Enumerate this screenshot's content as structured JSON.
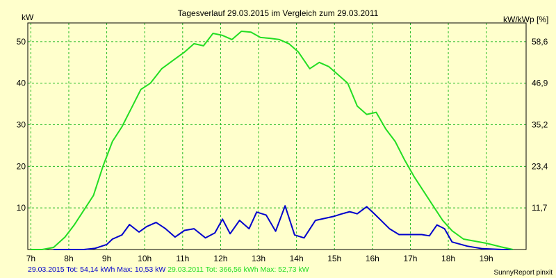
{
  "chart_data": {
    "type": "line",
    "title": "Tagesverlauf 29.03.2015 im Vergleich zum 29.03.2011",
    "ylabel_left": "kW",
    "ylabel_right": "kW/kWp [%]",
    "x_ticks": [
      "7h",
      "8h",
      "9h",
      "10h",
      "11h",
      "12h",
      "13h",
      "14h",
      "15h",
      "16h",
      "17h",
      "18h",
      "19h"
    ],
    "y_left_ticks": [
      10,
      20,
      30,
      40,
      50
    ],
    "y_right_ticks": [
      "11,7",
      "23,4",
      "35,2",
      "46,9",
      "58,6"
    ],
    "xlim": [
      6.92,
      20.05
    ],
    "ylim": [
      0,
      54.5
    ],
    "grid": true,
    "colors": {
      "background": "#ffffcc",
      "grid": "#22bb22",
      "series_2015": "#0000cc",
      "series_2011": "#22dd22"
    },
    "series": [
      {
        "name": "29.03.2015",
        "color": "#0000cc",
        "x": [
          7.6,
          8.4,
          8.7,
          9.0,
          9.15,
          9.4,
          9.6,
          9.85,
          10.05,
          10.3,
          10.55,
          10.8,
          11.05,
          11.3,
          11.6,
          11.85,
          12.05,
          12.25,
          12.5,
          12.75,
          12.95,
          13.2,
          13.45,
          13.7,
          13.95,
          14.2,
          14.5,
          14.75,
          15.0,
          15.2,
          15.4,
          15.6,
          15.85,
          16.05,
          16.25,
          16.45,
          16.7,
          17.0,
          17.3,
          17.5,
          17.7,
          17.9,
          18.1,
          18.5,
          18.9,
          19.4,
          19.7
        ],
        "y": [
          0,
          0,
          0.3,
          1.2,
          2.5,
          3.5,
          6.0,
          4.2,
          5.5,
          6.5,
          5.0,
          3.0,
          4.6,
          5.0,
          2.8,
          4.0,
          7.3,
          3.8,
          7.0,
          5.0,
          9.0,
          8.3,
          4.4,
          10.5,
          3.5,
          2.8,
          7.0,
          7.5,
          8.0,
          8.6,
          9.1,
          8.6,
          10.3,
          8.6,
          6.8,
          5.0,
          3.6,
          3.6,
          3.6,
          3.3,
          5.9,
          5.0,
          1.8,
          0.8,
          0.2,
          0,
          0
        ]
      },
      {
        "name": "29.03.2011",
        "color": "#22dd22",
        "x": [
          7.0,
          7.3,
          7.6,
          7.9,
          8.15,
          8.4,
          8.65,
          8.9,
          9.15,
          9.4,
          9.65,
          9.9,
          10.15,
          10.45,
          10.75,
          11.05,
          11.3,
          11.55,
          11.8,
          12.05,
          12.3,
          12.55,
          12.8,
          13.05,
          13.3,
          13.55,
          13.8,
          14.05,
          14.35,
          14.6,
          14.85,
          15.1,
          15.35,
          15.6,
          15.85,
          16.1,
          16.35,
          16.6,
          16.85,
          17.1,
          17.35,
          17.6,
          17.85,
          18.1,
          18.4,
          18.7,
          19.0,
          19.4,
          19.7
        ],
        "y": [
          0,
          0,
          0.5,
          3.0,
          6.0,
          9.5,
          13.0,
          20.0,
          26.0,
          29.5,
          34.0,
          38.5,
          40.0,
          43.5,
          45.5,
          47.5,
          49.5,
          49.0,
          52.0,
          51.5,
          50.5,
          52.5,
          52.3,
          51.0,
          50.8,
          50.5,
          49.5,
          47.5,
          43.5,
          45.0,
          44.0,
          42.0,
          40.0,
          34.5,
          32.5,
          33.0,
          29.0,
          26.0,
          21.5,
          17.5,
          14.0,
          10.5,
          7.0,
          4.5,
          2.5,
          2.0,
          1.5,
          0.6,
          0
        ]
      }
    ]
  },
  "footer": {
    "series_2015_summary": "29.03.2015 Tot: 54,14 kWh Max: 10,53 kW",
    "series_2011_summary": "29.03.2011 Tot: 366,56 kWh Max: 52,73 kW"
  },
  "credit": "SunnyReport pinxit"
}
